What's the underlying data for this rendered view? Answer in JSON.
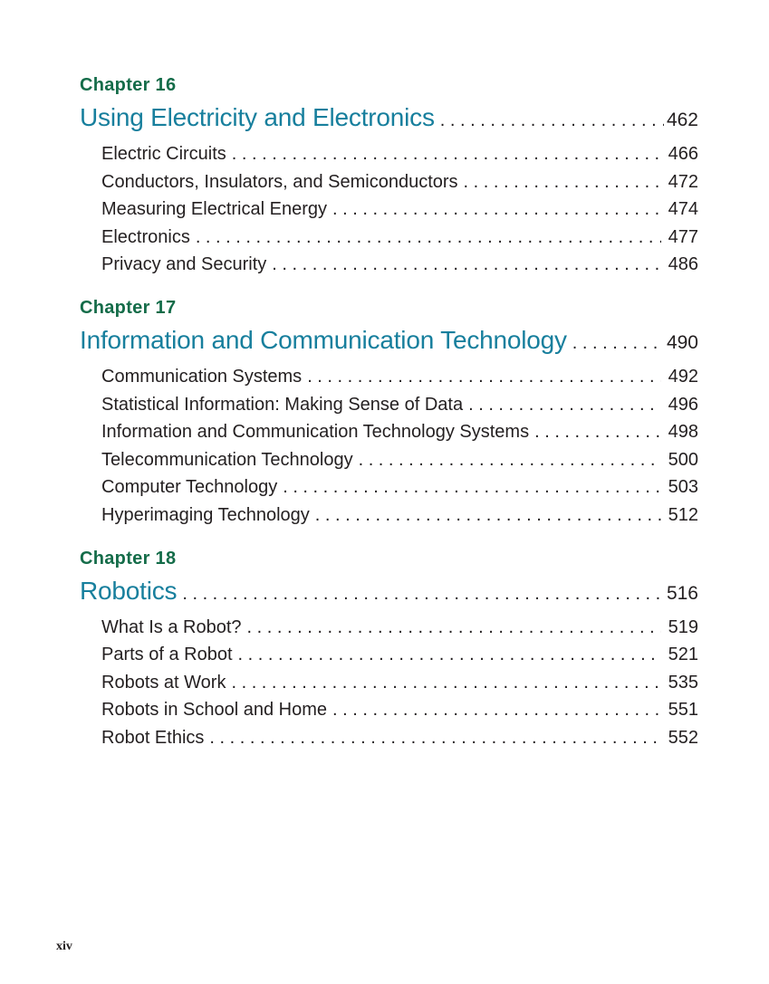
{
  "page": {
    "footer_page_number": "xiv"
  },
  "colors": {
    "chapter_label_green": "#146c49",
    "chapter_title_teal": "#177f9d",
    "body_text": "#231f20",
    "background": "#ffffff"
  },
  "toc": {
    "chapters": [
      {
        "label": "Chapter 16",
        "title": "Using Electricity and Electronics",
        "page": "462",
        "entries": [
          {
            "title": "Electric Circuits",
            "page": "466"
          },
          {
            "title": "Conductors, Insulators, and Semiconductors",
            "page": "472"
          },
          {
            "title": "Measuring Electrical Energy",
            "page": "474"
          },
          {
            "title": "Electronics",
            "page": "477"
          },
          {
            "title": "Privacy and Security",
            "page": "486"
          }
        ]
      },
      {
        "label": "Chapter 17",
        "title": "Information and Communication Technology",
        "page": "490",
        "entries": [
          {
            "title": "Communication Systems",
            "page": "492"
          },
          {
            "title": "Statistical Information: Making Sense of Data",
            "page": "496"
          },
          {
            "title": "Information and Communication Technology Systems",
            "page": "498"
          },
          {
            "title": "Telecommunication Technology",
            "page": "500"
          },
          {
            "title": "Computer Technology",
            "page": "503"
          },
          {
            "title": "Hyperimaging Technology",
            "page": "512"
          }
        ]
      },
      {
        "label": "Chapter 18",
        "title": "Robotics",
        "page": "516",
        "entries": [
          {
            "title": "What Is a Robot?",
            "page": "519"
          },
          {
            "title": "Parts of a Robot",
            "page": "521"
          },
          {
            "title": "Robots at Work",
            "page": "535"
          },
          {
            "title": "Robots in School and Home",
            "page": "551"
          },
          {
            "title": "Robot Ethics",
            "page": "552"
          }
        ]
      }
    ]
  }
}
